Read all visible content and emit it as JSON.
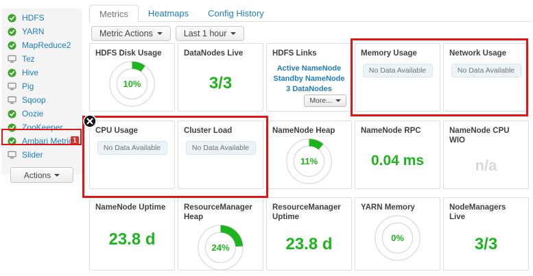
{
  "sidebar": {
    "items": [
      {
        "label": "HDFS",
        "status": "ok"
      },
      {
        "label": "YARN",
        "status": "ok"
      },
      {
        "label": "MapReduce2",
        "status": "ok"
      },
      {
        "label": "Tez",
        "status": "client"
      },
      {
        "label": "Hive",
        "status": "ok"
      },
      {
        "label": "Pig",
        "status": "client"
      },
      {
        "label": "Sqoop",
        "status": "client"
      },
      {
        "label": "Oozie",
        "status": "ok"
      },
      {
        "label": "ZooKeeper",
        "status": "ok"
      },
      {
        "label": "Ambari Metrics",
        "status": "ok",
        "badge": "1",
        "highlighted": true
      },
      {
        "label": "Slider",
        "status": "client"
      }
    ],
    "actions_label": "Actions"
  },
  "tabs": [
    {
      "label": "Metrics",
      "active": true
    },
    {
      "label": "Heatmaps",
      "active": false
    },
    {
      "label": "Config History",
      "active": false
    }
  ],
  "toolbar": {
    "metric_actions_label": "Metric Actions",
    "time_range_label": "Last 1 hour"
  },
  "widgets": [
    {
      "title": "HDFS Disk Usage",
      "type": "donut",
      "percent": 10,
      "percent_label": "10%"
    },
    {
      "title": "DataNodes Live",
      "type": "bigtext",
      "value": "3/3"
    },
    {
      "title": "HDFS Links",
      "type": "links",
      "links": [
        "Active NameNode",
        "Standby NameNode",
        "3 DataNodes"
      ],
      "more_label": "More..."
    },
    {
      "title": "Memory Usage",
      "type": "nodata",
      "value": "No Data Available"
    },
    {
      "title": "Network Usage",
      "type": "nodata",
      "value": "No Data Available"
    },
    {
      "title": "CPU Usage",
      "type": "nodata",
      "value": "No Data Available"
    },
    {
      "title": "Cluster Load",
      "type": "nodata",
      "value": "No Data Available"
    },
    {
      "title": "NameNode Heap",
      "type": "donut",
      "percent": 11,
      "percent_label": "11%"
    },
    {
      "title": "NameNode RPC",
      "type": "bigtext",
      "value": "0.04 ms"
    },
    {
      "title": "NameNode CPU WIO",
      "type": "bigtext_muted",
      "value": "n/a"
    },
    {
      "title": "NameNode Uptime",
      "type": "bigtext",
      "value": "23.8 d"
    },
    {
      "title": "ResourceManager Heap",
      "type": "donut",
      "percent": 24,
      "percent_label": "24%"
    },
    {
      "title": "ResourceManager Uptime",
      "type": "bigtext",
      "value": "23.8 d"
    },
    {
      "title": "YARN Memory",
      "type": "donut",
      "percent": 0,
      "percent_label": "0%"
    },
    {
      "title": "NodeManagers Live",
      "type": "bigtext",
      "value": "3/3"
    }
  ],
  "annotations": {
    "boxes": [
      "ambari-metrics-sidebar-item",
      "cpu-usage-and-cluster-load",
      "memory-usage-and-network-usage"
    ],
    "close_icon": "x-circle"
  },
  "colors": {
    "green": "#1eb41e",
    "blue": "#1d7dc2",
    "annotation_red": "#e31414",
    "badge_red": "#d3342c",
    "muted": "#d8d8d8"
  }
}
